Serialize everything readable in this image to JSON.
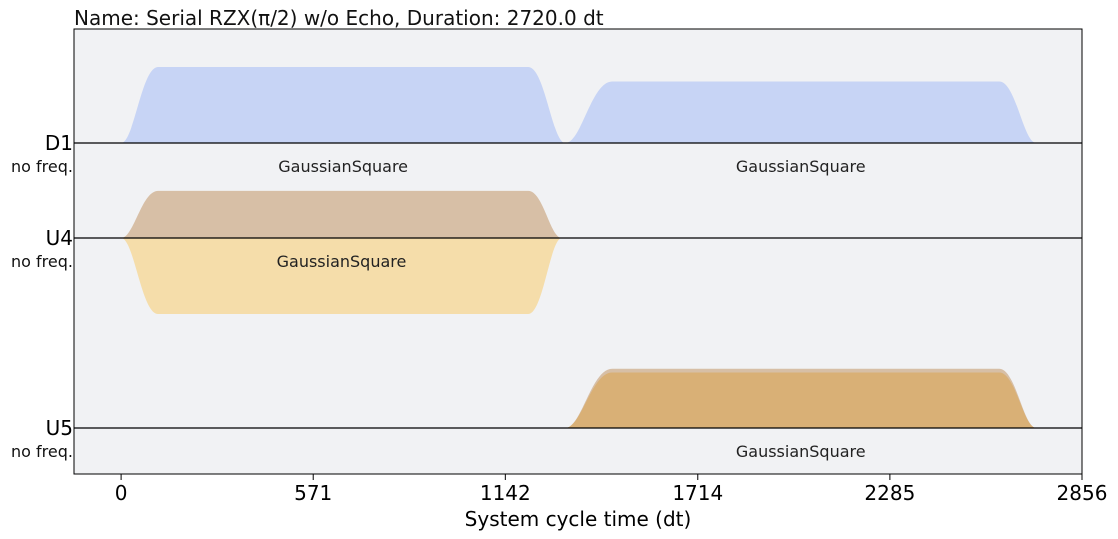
{
  "chart_data": {
    "type": "area",
    "title": "Name: Serial RZX(π/2) w/o Echo, Duration: 2720.0 dt",
    "xlabel": "System cycle time (dt)",
    "xlim": [
      -140,
      2856
    ],
    "x_ticks": [
      0,
      571,
      1142,
      1714,
      2285,
      2856
    ],
    "channels": [
      {
        "name": "D1",
        "sub": "no freq.",
        "pulses": [
          {
            "name": "GaussianSquare",
            "start": 0,
            "end": 1320,
            "flat_start": 110,
            "flat_end": 1210,
            "amp_real": 1.0,
            "amp_imag": 0.0
          },
          {
            "name": "GaussianSquare",
            "start": 1320,
            "end": 2720,
            "flat_start": 1460,
            "flat_end": 2610,
            "amp_real": 0.81,
            "amp_imag": 0.0
          }
        ]
      },
      {
        "name": "U4",
        "sub": "no freq.",
        "pulses": [
          {
            "name": "GaussianSquare",
            "start": 0,
            "end": 1310,
            "flat_start": 110,
            "flat_end": 1210,
            "amp_real": -1.0,
            "amp_imag": 0.62
          }
        ]
      },
      {
        "name": "U5",
        "sub": "no freq.",
        "pulses": [
          {
            "name": "GaussianSquare",
            "start": 1320,
            "end": 2720,
            "flat_start": 1460,
            "flat_end": 2610,
            "amp_real": 0.73,
            "amp_imag": 0.78
          }
        ]
      }
    ],
    "colors": {
      "background": "#f1f2f4",
      "d_real": "#c7d4f5",
      "u_real": "#f5ddaa",
      "u_imag": "#d7bfa6",
      "u_overlap": "#d9b076",
      "baseline": "#000000"
    }
  }
}
